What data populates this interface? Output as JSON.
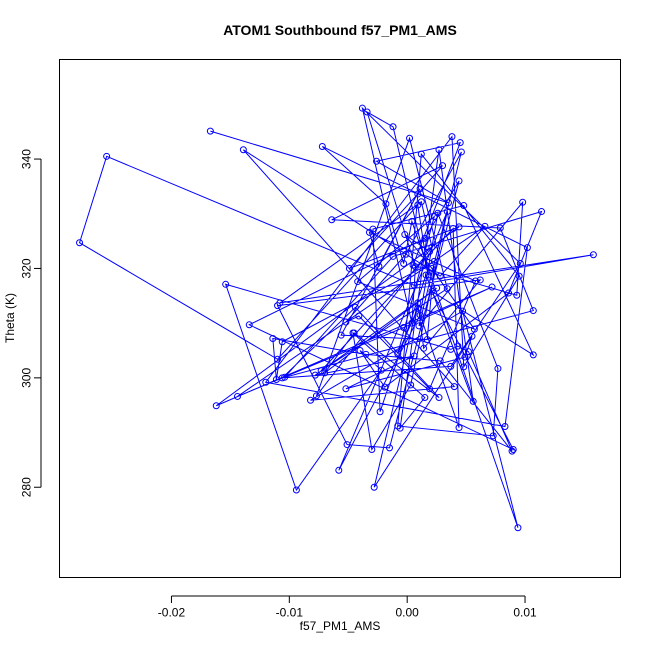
{
  "chart_data": {
    "type": "line",
    "title": "ATOM1 Southbound f57_PM1_AMS",
    "xlabel": "f57_PM1_AMS",
    "ylabel": "Theta (K)",
    "xlim": [
      -0.0295,
      0.0181
    ],
    "ylim": [
      263.5,
      358.2
    ],
    "x_ticks": [
      -0.02,
      -0.01,
      0.0,
      0.01
    ],
    "x_tick_labels": [
      "-0.02",
      "-0.01",
      "0.00",
      "0.01"
    ],
    "y_ticks": [
      280,
      300,
      320,
      340
    ],
    "y_tick_labels": [
      "280",
      "300",
      "320",
      "340"
    ],
    "grid": false,
    "legend": "none",
    "markers": "open-circle",
    "color": "#0000ff",
    "series": [
      {
        "values": [
          [
            -0.0167,
            345.1
          ],
          [
            0.0035,
            332.0
          ],
          [
            -0.0026,
            339.6
          ],
          [
            0.0045,
            343.0
          ],
          [
            0.0005,
            320.6
          ],
          [
            0.0093,
            315.1
          ],
          [
            0.0098,
            332.1
          ],
          [
            0.001,
            309.5
          ],
          [
            0.0046,
            341.3
          ],
          [
            -0.0001,
            322.6
          ],
          [
            -0.0052,
            310.2
          ],
          [
            -0.0041,
            311.3
          ],
          [
            0.0019,
            298.0
          ],
          [
            0.0058,
            317.7
          ],
          [
            -0.0032,
            326.6
          ],
          [
            -0.0024,
            320.4
          ],
          [
            0.0011,
            334.6
          ],
          [
            -0.0056,
            307.8
          ],
          [
            0.0017,
            307.0
          ],
          [
            0.0023,
            321.3
          ],
          [
            -0.0106,
            306.6
          ],
          [
            -0.0111,
            299.7
          ],
          [
            -0.0114,
            307.2
          ],
          [
            -0.0035,
            304.3
          ],
          [
            0.0028,
            303.1
          ],
          [
            0.0089,
            286.6
          ],
          [
            0.0052,
            304.8
          ],
          [
            0.0043,
            305.8
          ],
          [
            0.0037,
            305.2
          ],
          [
            -0.0154,
            317.1
          ],
          [
            -0.0094,
            279.5
          ],
          [
            -0.0022,
            301.4
          ],
          [
            -0.004,
            305.0
          ],
          [
            -0.0019,
            298.3
          ],
          [
            0.0086,
            315.5
          ],
          [
            0.0114,
            330.4
          ],
          [
            -0.0012,
            322.2
          ],
          [
            -0.0104,
            300.1
          ],
          [
            0.0107,
            312.3
          ],
          [
            0.0079,
            327.4
          ],
          [
            -0.0064,
            328.9
          ],
          [
            0.003,
            338.8
          ],
          [
            0.0009,
            333.6
          ],
          [
            -0.0049,
            320.0
          ],
          [
            0.0044,
            327.6
          ],
          [
            -0.0162,
            294.9
          ],
          [
            0.0072,
            316.6
          ],
          [
            -0.0003,
            309.2
          ],
          [
            -0.0144,
            296.6
          ],
          [
            0.0066,
            327.7
          ],
          [
            0.0028,
            318.6
          ],
          [
            -0.0139,
            341.7
          ],
          [
            0.004,
            298.4
          ],
          [
            -0.0082,
            295.9
          ],
          [
            0.0047,
            312.2
          ],
          [
            0.0094,
            272.6
          ],
          [
            0.0004,
            328.6
          ],
          [
            -0.0003,
            320.9
          ],
          [
            -0.0018,
            331.8
          ],
          [
            -0.0072,
            342.3
          ],
          [
            0.0102,
            323.8
          ],
          [
            0.0083,
            291.1
          ],
          [
            -0.012,
            299.2
          ],
          [
            0.0038,
            344.1
          ],
          [
            0.0048,
            302.0
          ],
          [
            0.0095,
            318.6
          ],
          [
            0.0012,
            340.9
          ],
          [
            -0.0008,
            291.2
          ],
          [
            0.0073,
            289.4
          ],
          [
            0.0077,
            301.7
          ],
          [
            0.0026,
            330.1
          ],
          [
            0.0011,
            311.5
          ],
          [
            -0.0058,
            283.1
          ],
          [
            0.0034,
            330.4
          ],
          [
            0.0003,
            298.7
          ],
          [
            -0.003,
            286.9
          ],
          [
            -0.0046,
            308.2
          ],
          [
            0.0015,
            296.4
          ],
          [
            -0.0006,
            290.8
          ],
          [
            0.0027,
            341.7
          ],
          [
            0.0056,
            295.7
          ],
          [
            0.0016,
            318.8
          ],
          [
            -0.0023,
            293.8
          ],
          [
            -0.0029,
            327.2
          ],
          [
            0.0048,
            331.5
          ],
          [
            0.0107,
            304.2
          ],
          [
            0.0021,
            315.8
          ],
          [
            0.009,
            286.9
          ],
          [
            -0.0134,
            309.7
          ],
          [
            0.0015,
            325.5
          ],
          [
            0.0044,
            336.0
          ],
          [
            -0.0015,
            287.2
          ],
          [
            -0.0051,
            287.8
          ],
          [
            -0.011,
            313.2
          ],
          [
            0.0062,
            317.9
          ],
          [
            0.0014,
            305.4
          ],
          [
            0.0009,
            313.7
          ],
          [
            -0.0028,
            280.0
          ],
          [
            0.0055,
            307.6
          ],
          [
            0.0049,
            303.8
          ],
          [
            -0.0052,
            298.0
          ],
          [
            0.0006,
            304.0
          ],
          [
            -0.0078,
            300.5
          ],
          [
            0.0025,
            316.4
          ],
          [
            -0.007,
            300.9
          ],
          [
            -0.0045,
            308.2
          ],
          [
            0.0027,
            296.4
          ],
          [
            -0.0044,
            312.9
          ],
          [
            -0.0106,
            300.0
          ],
          [
            0.0037,
            302.1
          ],
          [
            0.0096,
            320.9
          ],
          [
            -0.0038,
            349.3
          ],
          [
            0.0004,
            310.0
          ],
          [
            0.0007,
            320.3
          ],
          [
            -0.0034,
            348.6
          ],
          [
            -0.0012,
            345.9
          ],
          [
            0.0018,
            318.8
          ],
          [
            0.0009,
            331.6
          ],
          [
            -0.011,
            303.4
          ],
          [
            -0.0278,
            324.7
          ],
          [
            -0.0255,
            340.5
          ],
          [
            0.0006,
            316.9
          ],
          [
            0.0158,
            322.5
          ],
          [
            -0.0108,
            313.7
          ],
          [
            0.0012,
            332.2
          ],
          [
            0.0021,
            323.9
          ],
          [
            -0.0077,
            296.7
          ],
          [
            0.0002,
            343.8
          ],
          [
            0.0034,
            316.3
          ],
          [
            -0.0073,
            301.3
          ],
          [
            0.0039,
            327.3
          ],
          [
            0.0044,
            290.9
          ],
          [
            0.0009,
            312.7
          ],
          [
            -0.0008,
            304.4
          ],
          [
            0.0023,
            329.5
          ],
          [
            -0.0042,
            317.6
          ],
          [
            0.0057,
            308.9
          ],
          [
            0.0021,
            320.0
          ],
          [
            -0.0002,
            326.2
          ],
          [
            0.0019,
            323.1
          ]
        ]
      }
    ]
  }
}
